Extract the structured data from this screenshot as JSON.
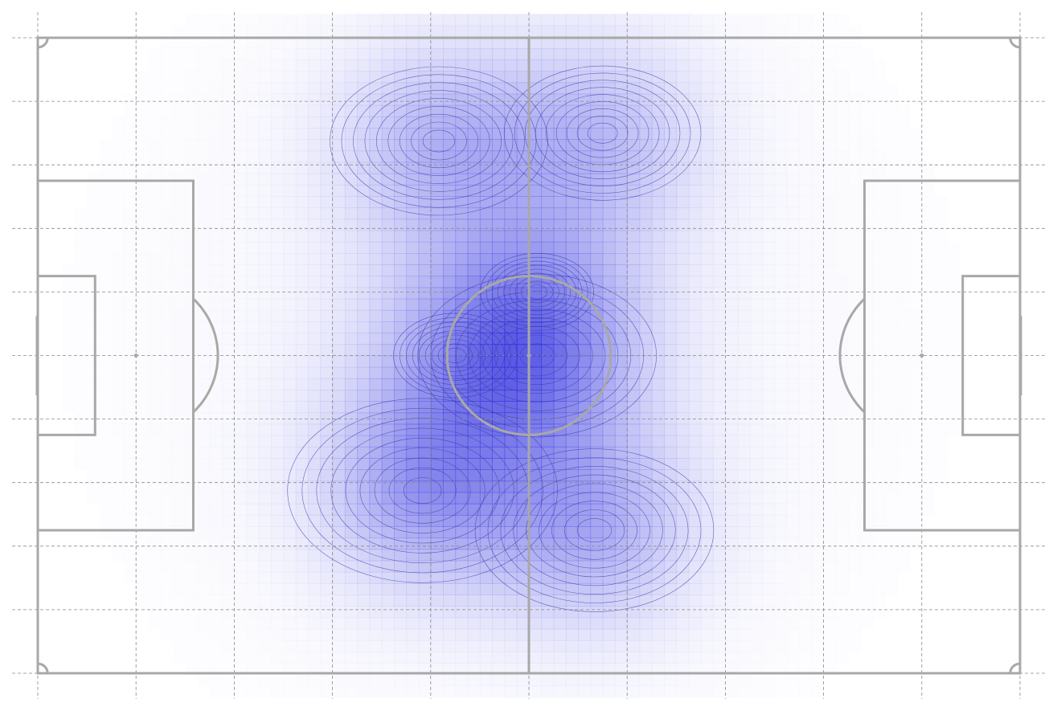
{
  "chart_data": {
    "type": "heatmap",
    "title": "",
    "subtitle": "",
    "xlabel": "",
    "ylabel": "",
    "description_kind": "kernel density heatmap on a football pitch",
    "pitch": {
      "length": 120,
      "width": 80,
      "units": "yards",
      "grid": true,
      "grid_divisions_x": 10,
      "grid_divisions_y": 10,
      "xlim": [
        -3,
        123
      ],
      "ylim": [
        -3,
        83
      ]
    },
    "colormap": {
      "low": "#ffffff",
      "high": "#2323dc",
      "line_color": "#a8a8a8",
      "grid_color": "#8a8a8a",
      "contour_color": "#3a3aa8"
    },
    "density_peaks": [
      {
        "x": 49,
        "y": 67,
        "weight": 1.0
      },
      {
        "x": 69,
        "y": 68,
        "weight": 0.9
      },
      {
        "x": 61,
        "y": 40,
        "weight": 1.1
      },
      {
        "x": 51,
        "y": 40,
        "weight": 0.55
      },
      {
        "x": 47,
        "y": 23,
        "weight": 1.25
      },
      {
        "x": 68,
        "y": 18,
        "weight": 1.1
      },
      {
        "x": 61,
        "y": 48,
        "weight": 0.5
      }
    ]
  }
}
